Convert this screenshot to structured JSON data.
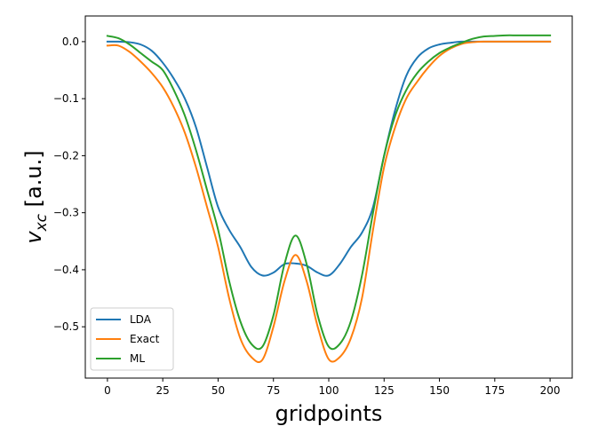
{
  "chart_data": {
    "type": "line",
    "title": "",
    "xlabel": "gridpoints",
    "ylabel_main": "v",
    "ylabel_sub": "xc",
    "ylabel_unit": " [a.u.]",
    "xlim": [
      -10,
      210
    ],
    "ylim": [
      -0.59,
      0.045
    ],
    "xticks": [
      0,
      25,
      50,
      75,
      100,
      125,
      150,
      175,
      200
    ],
    "xtick_labels": [
      "0",
      "25",
      "50",
      "75",
      "100",
      "125",
      "150",
      "175",
      "200"
    ],
    "yticks": [
      0.0,
      -0.1,
      -0.2,
      -0.3,
      -0.4,
      -0.5
    ],
    "ytick_labels": [
      "0.0",
      "−0.1",
      "−0.2",
      "−0.3",
      "−0.4",
      "−0.5"
    ],
    "grid": false,
    "legend_position": "lower-left",
    "series": [
      {
        "name": "LDA",
        "color": "#1f77b4",
        "x": [
          0,
          5,
          10,
          15,
          20,
          25,
          30,
          35,
          40,
          45,
          50,
          55,
          60,
          65,
          70,
          75,
          80,
          85,
          90,
          95,
          100,
          105,
          110,
          115,
          120,
          125,
          130,
          135,
          140,
          145,
          150,
          155,
          160,
          165,
          170,
          175,
          180,
          185,
          190,
          195,
          200
        ],
        "y": [
          0.0,
          0.0,
          -0.001,
          -0.005,
          -0.016,
          -0.037,
          -0.065,
          -0.1,
          -0.15,
          -0.22,
          -0.29,
          -0.33,
          -0.36,
          -0.395,
          -0.41,
          -0.405,
          -0.39,
          -0.389,
          -0.393,
          -0.405,
          -0.41,
          -0.39,
          -0.36,
          -0.335,
          -0.29,
          -0.2,
          -0.12,
          -0.06,
          -0.028,
          -0.012,
          -0.005,
          -0.002,
          0.0,
          0.0,
          0.0,
          0.0,
          0.0,
          0.0,
          0.0,
          0.0,
          0.0
        ]
      },
      {
        "name": "Exact",
        "color": "#ff7f0e",
        "x": [
          0,
          5,
          10,
          15,
          20,
          25,
          30,
          35,
          40,
          45,
          50,
          55,
          60,
          65,
          70,
          75,
          80,
          85,
          90,
          95,
          100,
          105,
          110,
          115,
          120,
          125,
          130,
          135,
          140,
          145,
          150,
          155,
          160,
          165,
          170,
          175,
          180,
          185,
          190,
          195,
          200
        ],
        "y": [
          -0.007,
          -0.007,
          -0.018,
          -0.035,
          -0.055,
          -0.08,
          -0.115,
          -0.16,
          -0.22,
          -0.29,
          -0.36,
          -0.45,
          -0.52,
          -0.553,
          -0.558,
          -0.5,
          -0.42,
          -0.374,
          -0.42,
          -0.5,
          -0.557,
          -0.553,
          -0.52,
          -0.45,
          -0.33,
          -0.22,
          -0.15,
          -0.1,
          -0.07,
          -0.045,
          -0.025,
          -0.012,
          -0.004,
          -0.001,
          0.0,
          0.0,
          0.0,
          0.0,
          0.0,
          0.0,
          0.0
        ]
      },
      {
        "name": "ML",
        "color": "#2ca02c",
        "x": [
          0,
          5,
          10,
          15,
          20,
          25,
          30,
          35,
          40,
          45,
          50,
          55,
          60,
          65,
          70,
          75,
          80,
          85,
          90,
          95,
          100,
          105,
          110,
          115,
          120,
          125,
          130,
          135,
          140,
          145,
          150,
          155,
          160,
          165,
          170,
          175,
          180,
          185,
          190,
          195,
          200
        ],
        "y": [
          0.01,
          0.006,
          -0.005,
          -0.02,
          -0.035,
          -0.05,
          -0.085,
          -0.13,
          -0.19,
          -0.26,
          -0.33,
          -0.42,
          -0.49,
          -0.53,
          -0.535,
          -0.48,
          -0.39,
          -0.34,
          -0.39,
          -0.48,
          -0.535,
          -0.53,
          -0.49,
          -0.41,
          -0.3,
          -0.2,
          -0.13,
          -0.085,
          -0.055,
          -0.035,
          -0.02,
          -0.01,
          -0.002,
          0.005,
          0.009,
          0.01,
          0.011,
          0.011,
          0.011,
          0.011,
          0.011
        ]
      }
    ]
  }
}
